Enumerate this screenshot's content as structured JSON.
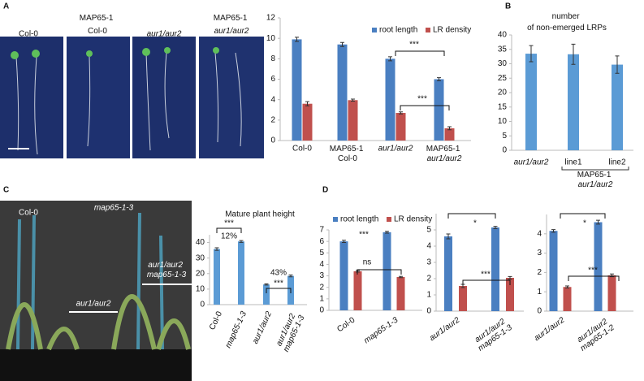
{
  "panels": {
    "letters": [
      "A",
      "B",
      "C",
      "D"
    ],
    "photo_a_labels": [
      "Col-0",
      "MAP65-1 Col-0",
      "aur1/aur2",
      "MAP65-1 aur1/aur2"
    ],
    "photo_c_labels": [
      "Col-0",
      "map65-1-3",
      "aur1/aur2 map65-1-3",
      "aur1/aur2"
    ]
  },
  "chart_data": [
    {
      "type": "bar",
      "categories": [
        "Col-0",
        "MAP65-1 Col-0",
        "aur1/aur2",
        "MAP65-1 aur1/aur2"
      ],
      "series": [
        {
          "name": "root length",
          "color": "#4a7fc1",
          "values": [
            9.9,
            9.4,
            8.0,
            6.0
          ],
          "errors": [
            0.2,
            0.2,
            0.2,
            0.15
          ]
        },
        {
          "name": "LR density",
          "color": "#c0504d",
          "values": [
            3.6,
            3.95,
            2.7,
            1.2
          ],
          "errors": [
            0.2,
            0.1,
            0.1,
            0.15
          ]
        }
      ],
      "ylim": [
        0,
        12
      ],
      "yticks": [
        0,
        2,
        4,
        6,
        8,
        10,
        12
      ],
      "legend": "top",
      "annotations": [
        "***",
        "***"
      ]
    },
    {
      "type": "bar",
      "title": "number of non-emerged LRPs",
      "categories": [
        "aur1/aur2",
        "line1",
        "line2"
      ],
      "group_label": "MAP65-1 aur1/aur2",
      "series": [
        {
          "color": "#5b9bd5",
          "values": [
            33.5,
            33.3,
            29.7
          ],
          "errors": [
            2.8,
            3.5,
            3.0
          ]
        }
      ],
      "ylim": [
        0,
        40
      ],
      "yticks": [
        0,
        5,
        10,
        15,
        20,
        25,
        30,
        35,
        40
      ]
    },
    {
      "type": "bar",
      "title": "Mature plant height",
      "categories": [
        "Col-0",
        "map65-1-3",
        "aur1/aur2",
        "aur1/aur2 map65-1-3"
      ],
      "series": [
        {
          "color": "#5b9bd5",
          "values": [
            35.8,
            40.7,
            13,
            18.5
          ],
          "errors": [
            0.8,
            0.6,
            0.4,
            0.6
          ]
        }
      ],
      "ylim": [
        0,
        45
      ],
      "yticks": [
        0,
        10,
        20,
        30,
        40
      ],
      "annotations": [
        "***",
        "12%",
        "43%",
        "***"
      ]
    },
    {
      "type": "bar",
      "categories": [
        "Col-0",
        "map65-1-3"
      ],
      "series": [
        {
          "name": "root length",
          "color": "#4a7fc1",
          "values": [
            6.0,
            6.8
          ],
          "errors": [
            0.1,
            0.08
          ]
        },
        {
          "name": "LR density",
          "color": "#c0504d",
          "values": [
            3.4,
            2.9
          ],
          "errors": [
            0.07,
            0.05
          ]
        }
      ],
      "ylim": [
        0,
        7
      ],
      "yticks": [
        0,
        1,
        2,
        3,
        4,
        5,
        6,
        7
      ],
      "legend": "top",
      "annotations": [
        "***",
        "ns"
      ]
    },
    {
      "type": "bar",
      "categories": [
        "aur1/aur2",
        "aur1/aur2 map65-1-3"
      ],
      "series": [
        {
          "name": "root length",
          "color": "#4a7fc1",
          "values": [
            4.6,
            5.15
          ],
          "errors": [
            0.15,
            0.07
          ]
        },
        {
          "name": "LR density",
          "color": "#c0504d",
          "values": [
            1.55,
            2.05
          ],
          "errors": [
            0.1,
            0.08
          ]
        }
      ],
      "ylim": [
        0,
        6
      ],
      "yticks": [
        0,
        1,
        2,
        3,
        4,
        5
      ],
      "annotations": [
        "*",
        "***"
      ]
    },
    {
      "type": "bar",
      "categories": [
        "aur1/aur2",
        "aur1/aur2 map65-1-2"
      ],
      "series": [
        {
          "name": "root length",
          "color": "#4a7fc1",
          "values": [
            4.15,
            4.6
          ],
          "errors": [
            0.07,
            0.1
          ]
        },
        {
          "name": "LR density",
          "color": "#c0504d",
          "values": [
            1.25,
            1.85
          ],
          "errors": [
            0.05,
            0.07
          ]
        }
      ],
      "ylim": [
        0,
        5
      ],
      "yticks": [
        0,
        1,
        2,
        3,
        4
      ],
      "annotations": [
        "*",
        "***"
      ]
    }
  ]
}
